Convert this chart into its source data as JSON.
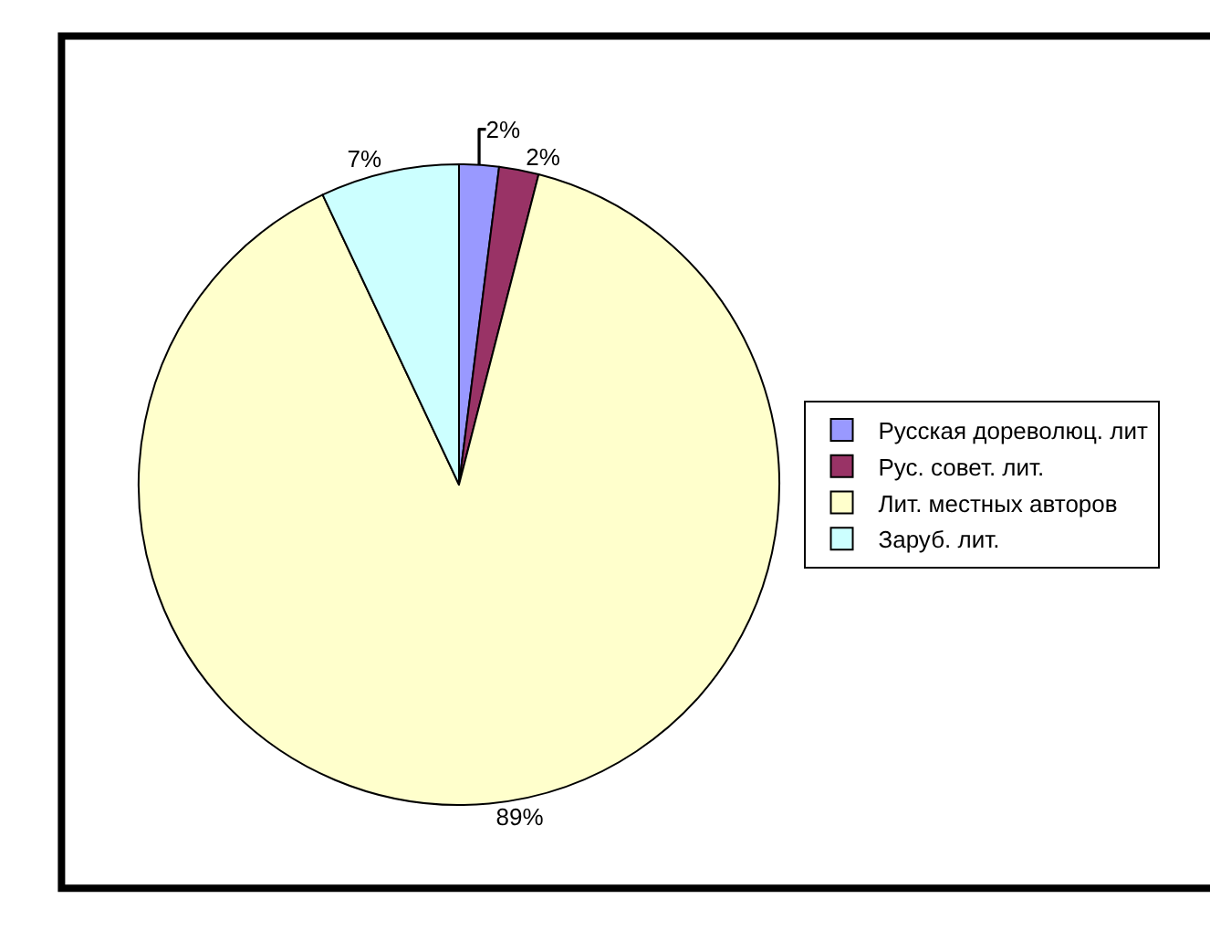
{
  "chart_data": {
    "type": "pie",
    "categories": [
      "Русская дореволюц. лит",
      "Рус. совет. лит.",
      "Лит. местных авторов",
      "Заруб. лит."
    ],
    "values": [
      2,
      2,
      89,
      7
    ],
    "colors": [
      "#9999ff",
      "#993366",
      "#ffffcc",
      "#ccffff"
    ],
    "value_labels": [
      "2%",
      "2%",
      "89%",
      "7%"
    ],
    "legend": "right"
  }
}
